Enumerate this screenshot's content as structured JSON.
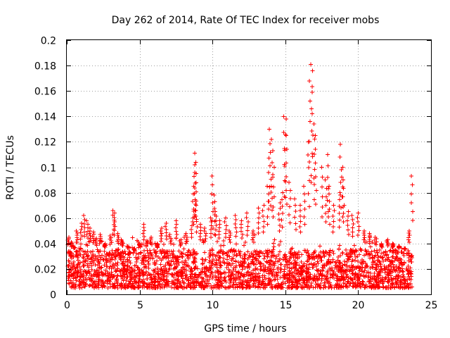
{
  "chart_data": {
    "type": "scatter",
    "title": "Day 262 of 2014, Rate Of TEC Index for receiver mobs",
    "xlabel": "GPS time / hours",
    "ylabel": "ROTI / TECUs",
    "xlim": [
      0,
      25
    ],
    "ylim": [
      0,
      0.2
    ],
    "xticks": [
      0,
      5,
      10,
      15,
      20,
      25
    ],
    "yticks": [
      0,
      0.02,
      0.04,
      0.06,
      0.08,
      0.1,
      0.12,
      0.14,
      0.16,
      0.18,
      0.2
    ],
    "xtick_labels": [
      "0",
      "5",
      "10",
      "15",
      "20",
      "25"
    ],
    "ytick_labels": [
      "0",
      "0.02",
      "0.04",
      "0.06",
      "0.08",
      "0.1",
      "0.12",
      "0.14",
      "0.16",
      "0.18",
      "0.2"
    ],
    "grid": true,
    "marker": "+",
    "marker_color": "#ff0000",
    "series": [
      {
        "name": "ROTI",
        "x": [
          0.1,
          0.2,
          0.3,
          0.5,
          0.7,
          1.0,
          1.2,
          1.4,
          1.6,
          1.8,
          2.0,
          2.3,
          2.6,
          3.0,
          3.2,
          3.3,
          3.5,
          3.8,
          4.2,
          4.6,
          5.0,
          5.3,
          5.5,
          5.8,
          6.2,
          6.5,
          6.8,
          7.1,
          7.5,
          7.8,
          8.2,
          8.6,
          8.7,
          8.75,
          8.8,
          8.85,
          8.9,
          9.2,
          9.5,
          9.9,
          10.0,
          10.1,
          10.2,
          10.5,
          10.9,
          11.2,
          11.6,
          12.0,
          12.4,
          12.8,
          13.2,
          13.5,
          13.8,
          13.9,
          14.0,
          14.1,
          14.2,
          14.6,
          14.8,
          14.9,
          15.0,
          15.1,
          15.3,
          15.7,
          16.0,
          16.3,
          16.6,
          16.7,
          16.8,
          16.9,
          17.0,
          17.1,
          17.5,
          17.8,
          17.9,
          18.0,
          18.3,
          18.7,
          18.8,
          18.9,
          19.0,
          19.3,
          19.6,
          20.0,
          20.4,
          20.8,
          21.2,
          21.6,
          22.0,
          22.4,
          22.8,
          23.2,
          23.5,
          23.7
        ],
        "y": [
          0.045,
          0.032,
          0.041,
          0.038,
          0.05,
          0.056,
          0.062,
          0.058,
          0.052,
          0.049,
          0.044,
          0.047,
          0.04,
          0.046,
          0.066,
          0.064,
          0.048,
          0.043,
          0.038,
          0.036,
          0.04,
          0.055,
          0.042,
          0.045,
          0.04,
          0.052,
          0.056,
          0.047,
          0.058,
          0.043,
          0.048,
          0.06,
          0.085,
          0.111,
          0.104,
          0.095,
          0.07,
          0.055,
          0.052,
          0.06,
          0.093,
          0.078,
          0.065,
          0.058,
          0.06,
          0.05,
          0.062,
          0.058,
          0.064,
          0.05,
          0.068,
          0.07,
          0.085,
          0.13,
          0.122,
          0.113,
          0.1,
          0.072,
          0.08,
          0.14,
          0.138,
          0.125,
          0.088,
          0.075,
          0.07,
          0.085,
          0.12,
          0.168,
          0.181,
          0.176,
          0.134,
          0.125,
          0.1,
          0.09,
          0.11,
          0.085,
          0.07,
          0.08,
          0.118,
          0.1,
          0.09,
          0.065,
          0.062,
          0.064,
          0.05,
          0.048,
          0.045,
          0.04,
          0.043,
          0.04,
          0.038,
          0.036,
          0.05,
          0.093
        ]
      }
    ],
    "baseline_band": {
      "low": 0.005,
      "high": 0.035,
      "density": "dense"
    }
  }
}
